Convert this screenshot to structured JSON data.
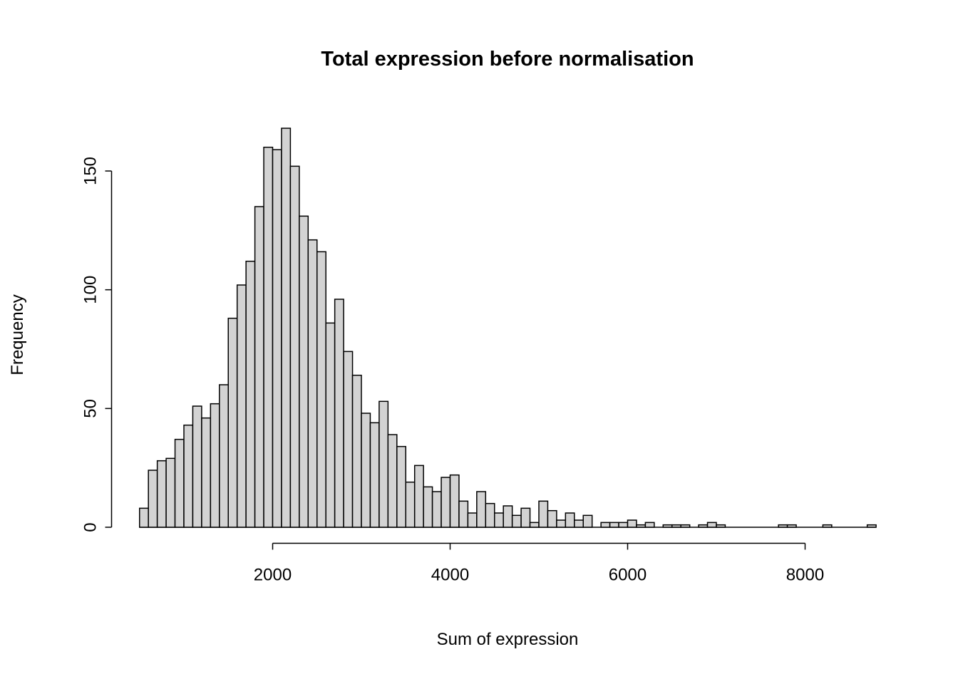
{
  "chart_data": {
    "type": "bar",
    "subtype": "histogram",
    "title": "Total expression before normalisation",
    "xlabel": "Sum of expression",
    "ylabel": "Frequency",
    "bin_start": 500,
    "bin_width": 100,
    "counts": [
      8,
      24,
      28,
      29,
      37,
      43,
      51,
      46,
      52,
      60,
      88,
      102,
      112,
      135,
      160,
      159,
      168,
      152,
      131,
      121,
      116,
      86,
      96,
      74,
      64,
      48,
      44,
      53,
      39,
      34,
      19,
      26,
      17,
      15,
      21,
      22,
      11,
      6,
      15,
      10,
      6,
      9,
      5,
      8,
      2,
      11,
      7,
      3,
      6,
      3,
      5,
      0,
      2,
      2,
      2,
      3,
      1,
      2,
      0,
      1,
      1,
      1,
      0,
      1,
      2,
      1,
      0,
      0,
      0,
      0,
      0,
      0,
      1,
      1,
      0,
      0,
      0,
      1,
      0,
      0,
      0,
      0,
      1
    ],
    "x_ticks": [
      2000,
      4000,
      6000,
      8000
    ],
    "y_ticks": [
      0,
      50,
      100,
      150
    ],
    "xlim": [
      500,
      8800
    ],
    "ylim": [
      0,
      168
    ],
    "grid": false,
    "legend": null,
    "bar_fill": "#d3d3d3",
    "bar_stroke": "#000000",
    "background": "#ffffff"
  }
}
